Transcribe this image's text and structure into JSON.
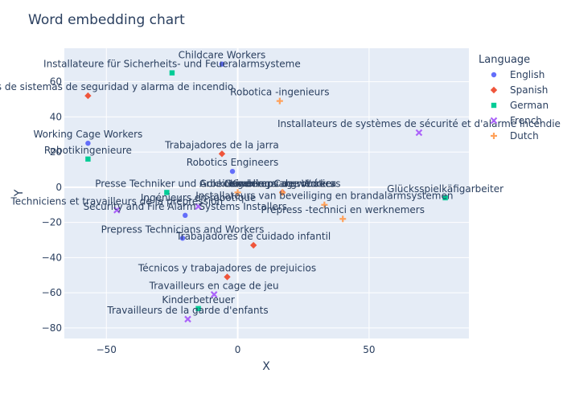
{
  "chart_data": {
    "type": "scatter",
    "title": "Word embedding chart",
    "xlabel": "X",
    "ylabel": "Y",
    "xlim": [
      -66,
      88
    ],
    "ylim": [
      -86,
      79
    ],
    "xticks": [
      -50,
      0,
      50
    ],
    "yticks": [
      -80,
      -60,
      -40,
      -20,
      0,
      20,
      40,
      60
    ],
    "grid": true,
    "legend": {
      "title": "Language",
      "placement": "right"
    },
    "series": [
      {
        "name": "English",
        "color": "#636efa",
        "marker": "circle",
        "points": [
          {
            "x": -6,
            "y": 70,
            "label": "Childcare Workers"
          },
          {
            "x": -57,
            "y": 25,
            "label": "Working Cage Workers"
          },
          {
            "x": -2,
            "y": 9,
            "label": "Robotics Engineers"
          },
          {
            "x": -20,
            "y": -16,
            "label": "Security and Fire Alarm Systems Installers"
          },
          {
            "x": -21,
            "y": -29,
            "label": "Prepress Technicians and Workers"
          },
          {
            "x": 17,
            "y": -3,
            "label": "Gambling Cage Workers"
          }
        ]
      },
      {
        "name": "Spanish",
        "color": "#EF553B",
        "marker": "diamond",
        "points": [
          {
            "x": -57,
            "y": 52,
            "label": "Instaladores de sistemas de seguridad y alarma de incendio"
          },
          {
            "x": -6,
            "y": 19,
            "label": "Trabajadores de la jarra"
          },
          {
            "x": 6,
            "y": -33,
            "label": "Trabajadores de cuidado infantil"
          },
          {
            "x": -4,
            "y": -51,
            "label": "Técnicos y trabajadores de prejuicios"
          },
          {
            "x": 17,
            "y": -3,
            "label": "Ingenieros de robótica"
          }
        ]
      },
      {
        "name": "German",
        "color": "#00cc96",
        "marker": "square",
        "points": [
          {
            "x": -25,
            "y": 65,
            "label": "Installateure für Sicherheits- und Feueralarmsysteme"
          },
          {
            "x": -57,
            "y": 16,
            "label": "Robotikingenieure"
          },
          {
            "x": -27,
            "y": -3,
            "label": "Presse Techniker und Arbeiter"
          },
          {
            "x": 79,
            "y": -6,
            "label": "Glücksspielkäfigarbeiter"
          },
          {
            "x": -15,
            "y": -69,
            "label": "Kinderbetreuer"
          }
        ]
      },
      {
        "name": "French",
        "color": "#ab63fa",
        "marker": "x",
        "points": [
          {
            "x": 69,
            "y": 31,
            "label": "Installateurs de systèmes de sécurité et d'alarme incendie"
          },
          {
            "x": -46,
            "y": -13,
            "label": "Techniciens et travailleurs de la prépression"
          },
          {
            "x": -15,
            "y": -11,
            "label": "Ingénieurs en robotique"
          },
          {
            "x": -9,
            "y": -61,
            "label": "Travailleurs en cage de jeu"
          },
          {
            "x": -19,
            "y": -75,
            "label": "Travailleurs de la garde d'enfants"
          }
        ]
      },
      {
        "name": "Dutch",
        "color": "#FFA15A",
        "marker": "cross",
        "points": [
          {
            "x": 16,
            "y": 49,
            "label": "Robotica -ingenieurs"
          },
          {
            "x": 33,
            "y": -10,
            "label": "Installateurs van beveiliging en brandalarmsystemen"
          },
          {
            "x": 40,
            "y": -18,
            "label": "Prepress -technici en werknemers"
          },
          {
            "x": 17,
            "y": -3,
            "label": "Kinderopvangwerkers"
          },
          {
            "x": 0,
            "y": -3,
            "label": "Gokkooiwerkers"
          }
        ]
      }
    ]
  }
}
